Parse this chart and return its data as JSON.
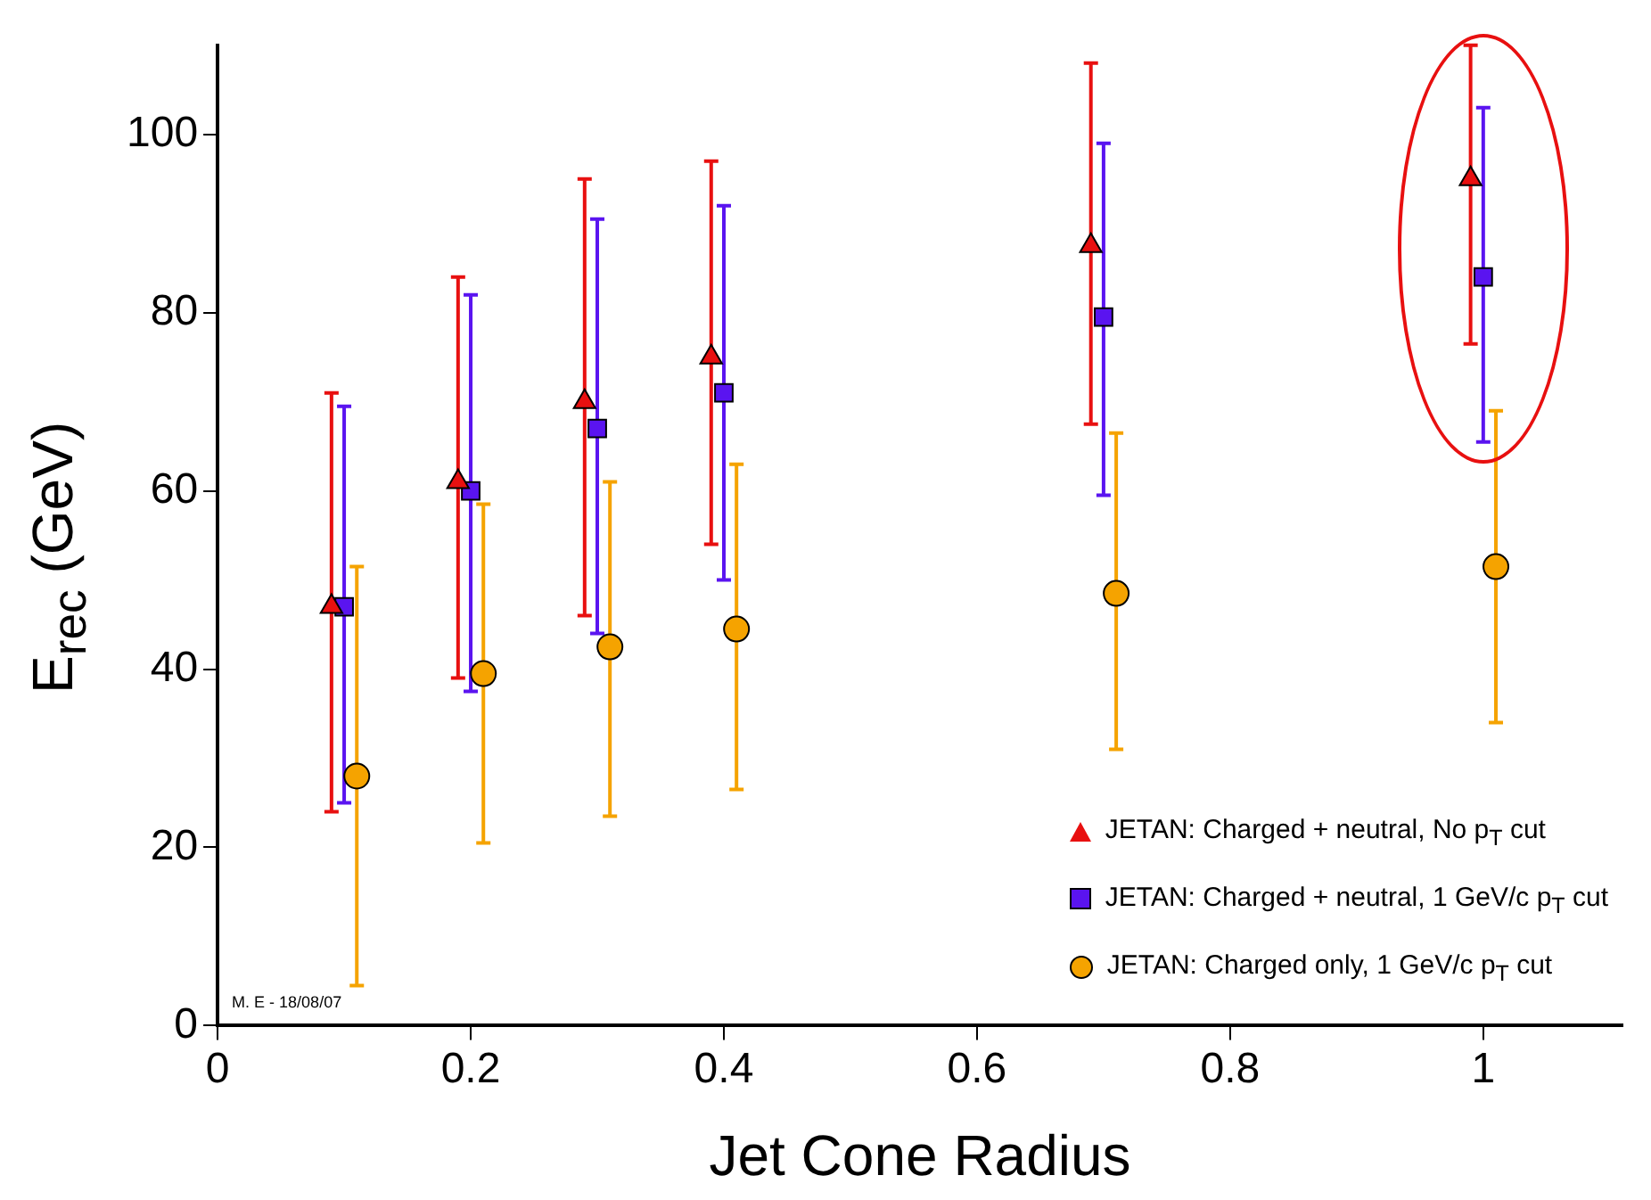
{
  "chart_data": {
    "type": "scatter",
    "xlabel": "Jet Cone Radius",
    "ylabel": "E$_{rec}$ (GeV)",
    "xlim": [
      0,
      1.11
    ],
    "xticks": [
      0,
      0.2,
      0.4,
      0.6,
      0.8,
      1
    ],
    "ylim": [
      0,
      110
    ],
    "yticks": [
      0,
      20,
      40,
      60,
      80,
      100
    ],
    "legend": "bottom right",
    "series": [
      {
        "name": "JETAN: Charged + neutral, No p$_{T}$ cut",
        "color": "#e81010",
        "marker": "triangle",
        "x": [
          0.09,
          0.19,
          0.29,
          0.39,
          0.69,
          0.99
        ],
        "values": [
          47,
          61,
          70,
          75,
          87.5,
          95
        ],
        "errors": [
          [
            24,
            71
          ],
          [
            39,
            84
          ],
          [
            46,
            95
          ],
          [
            54,
            97
          ],
          [
            67.5,
            108
          ],
          [
            76.5,
            110
          ]
        ]
      },
      {
        "name": "JETAN: Charged + neutral, 1 GeV/c p$_{T}$ cut",
        "color": "#5a14f0",
        "marker": "square",
        "x": [
          0.1,
          0.2,
          0.3,
          0.4,
          0.7,
          1.0
        ],
        "values": [
          47,
          60,
          67,
          71,
          79.5,
          84
        ],
        "errors": [
          [
            25,
            69.5
          ],
          [
            37.5,
            82
          ],
          [
            44,
            90.5
          ],
          [
            50,
            92
          ],
          [
            59.5,
            99
          ],
          [
            65.5,
            103
          ]
        ]
      },
      {
        "name": "JETAN: Charged only, 1 GeV/c p$_{T}$ cut",
        "color": "#f5a300",
        "marker": "circle",
        "x": [
          0.11,
          0.21,
          0.31,
          0.41,
          0.71,
          1.01
        ],
        "values": [
          28,
          39.5,
          42.5,
          44.5,
          48.5,
          51.5
        ],
        "errors": [
          [
            4.5,
            51.5
          ],
          [
            20.5,
            58.5
          ],
          [
            23.5,
            61
          ],
          [
            26.5,
            63
          ],
          [
            31,
            66.5
          ],
          [
            34,
            69
          ]
        ]
      }
    ],
    "annotations": [
      "M. E - 18/08/07"
    ]
  }
}
